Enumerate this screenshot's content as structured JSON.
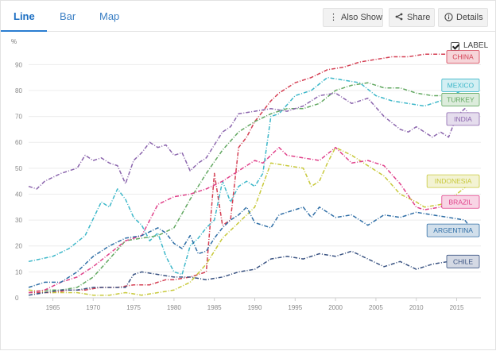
{
  "tabs": [
    "Line",
    "Bar",
    "Map"
  ],
  "toolbar": {
    "also_show": "Also Show",
    "share": "Share",
    "details": "Details",
    "label_toggle": "LABEL"
  },
  "icons": {
    "also_show": "ellipsis-vertical-icon",
    "share": "share-icon",
    "details": "info-icon",
    "label_toggle": "checkbox-checked-icon"
  },
  "chart_data": {
    "type": "line",
    "title": "",
    "xlabel": "",
    "ylabel": "%",
    "xlim": [
      1962,
      2018
    ],
    "ylim": [
      0,
      95
    ],
    "x_ticks": [
      1965,
      1970,
      1975,
      1980,
      1985,
      1990,
      1995,
      2000,
      2005,
      2010,
      2015
    ],
    "y_ticks": [
      0,
      10,
      20,
      30,
      40,
      50,
      60,
      70,
      80,
      90
    ],
    "grid": true,
    "legend": "inline labels at line ends",
    "series": [
      {
        "name": "CHINA",
        "color": "#d43f53",
        "x": [
          1962,
          1965,
          1967,
          1969,
          1971,
          1973,
          1975,
          1977,
          1978,
          1979,
          1980,
          1982,
          1984,
          1985,
          1986,
          1987,
          1988,
          1989,
          1990,
          1991,
          1992,
          1993,
          1995,
          1997,
          1999,
          2001,
          2003,
          2005,
          2007,
          2009,
          2011,
          2013,
          2015,
          2017
        ],
        "y": [
          2,
          2,
          3,
          3,
          4,
          4,
          5,
          5,
          6,
          7,
          7,
          8,
          10,
          48,
          28,
          30,
          58,
          62,
          68,
          72,
          76,
          79,
          83,
          85,
          88,
          89,
          91,
          92,
          93,
          93,
          94,
          94,
          94,
          93
        ]
      },
      {
        "name": "MEXICO",
        "color": "#3cb7c9",
        "x": [
          1962,
          1965,
          1967,
          1969,
          1971,
          1972,
          1973,
          1974,
          1975,
          1976,
          1977,
          1978,
          1979,
          1980,
          1981,
          1982,
          1983,
          1984,
          1985,
          1986,
          1987,
          1988,
          1989,
          1990,
          1991,
          1992,
          1993,
          1995,
          1997,
          1999,
          2001,
          2003,
          2005,
          2007,
          2009,
          2011,
          2013,
          2015,
          2017
        ],
        "y": [
          14,
          16,
          19,
          24,
          37,
          35,
          42,
          38,
          31,
          28,
          22,
          25,
          16,
          10,
          9,
          20,
          23,
          27,
          30,
          45,
          37,
          43,
          45,
          43,
          48,
          70,
          71,
          78,
          80,
          85,
          84,
          83,
          78,
          76,
          75,
          74,
          76,
          79,
          82
        ]
      },
      {
        "name": "TURKEY",
        "color": "#62a861",
        "x": [
          1962,
          1964,
          1966,
          1968,
          1970,
          1972,
          1974,
          1976,
          1978,
          1980,
          1982,
          1984,
          1986,
          1988,
          1990,
          1992,
          1994,
          1996,
          1998,
          2000,
          2002,
          2004,
          2006,
          2008,
          2010,
          2012,
          2014,
          2016,
          2017
        ],
        "y": [
          2,
          3,
          3,
          4,
          8,
          15,
          22,
          23,
          24,
          27,
          38,
          48,
          57,
          64,
          68,
          71,
          73,
          73,
          75,
          80,
          82,
          83,
          81,
          81,
          79,
          78,
          78,
          78,
          78
        ]
      },
      {
        "name": "INDIA",
        "color": "#8b65ad",
        "x": [
          1962,
          1963,
          1964,
          1966,
          1968,
          1969,
          1970,
          1971,
          1972,
          1973,
          1974,
          1975,
          1976,
          1977,
          1978,
          1979,
          1980,
          1981,
          1982,
          1983,
          1984,
          1985,
          1986,
          1987,
          1988,
          1990,
          1992,
          1994,
          1996,
          1998,
          2000,
          2002,
          2004,
          2006,
          2008,
          2009,
          2010,
          2011,
          2012,
          2013,
          2014,
          2015,
          2016,
          2017
        ],
        "y": [
          43,
          42,
          45,
          48,
          50,
          55,
          53,
          54,
          52,
          51,
          44,
          53,
          56,
          60,
          58,
          59,
          55,
          56,
          49,
          52,
          54,
          59,
          64,
          66,
          71,
          72,
          73,
          72,
          74,
          78,
          79,
          75,
          77,
          70,
          65,
          64,
          66,
          64,
          62,
          64,
          62,
          70,
          73,
          69
        ]
      },
      {
        "name": "INDONESIA",
        "color": "#c8c93b",
        "x": [
          1962,
          1965,
          1968,
          1970,
          1972,
          1974,
          1976,
          1978,
          1980,
          1982,
          1984,
          1986,
          1988,
          1990,
          1992,
          1994,
          1996,
          1997,
          1998,
          1999,
          2000,
          2002,
          2004,
          2006,
          2008,
          2010,
          2011,
          2013,
          2015,
          2017
        ],
        "y": [
          3,
          2,
          2,
          1,
          1,
          2,
          1,
          2,
          3,
          6,
          13,
          23,
          29,
          35,
          52,
          51,
          50,
          43,
          45,
          52,
          58,
          55,
          51,
          47,
          40,
          37,
          35,
          36,
          40,
          45
        ]
      },
      {
        "name": "BRAZIL",
        "color": "#e0418a",
        "x": [
          1962,
          1964,
          1966,
          1968,
          1970,
          1972,
          1974,
          1976,
          1978,
          1980,
          1982,
          1984,
          1986,
          1988,
          1990,
          1991,
          1992,
          1993,
          1994,
          1996,
          1998,
          2000,
          2002,
          2004,
          2006,
          2008,
          2010,
          2011,
          2013,
          2015,
          2017
        ],
        "y": [
          2,
          3,
          6,
          8,
          12,
          17,
          22,
          24,
          36,
          39,
          40,
          42,
          45,
          49,
          53,
          52,
          55,
          58,
          55,
          54,
          53,
          58,
          52,
          53,
          51,
          44,
          35,
          34,
          35,
          39,
          37
        ]
      },
      {
        "name": "ARGENTINA",
        "color": "#2f6ea6",
        "x": [
          1962,
          1964,
          1966,
          1968,
          1969,
          1970,
          1972,
          1974,
          1976,
          1978,
          1979,
          1980,
          1981,
          1982,
          1983,
          1984,
          1985,
          1986,
          1987,
          1988,
          1989,
          1990,
          1991,
          1992,
          1993,
          1994,
          1996,
          1997,
          1998,
          2000,
          2002,
          2004,
          2006,
          2008,
          2010,
          2012,
          2014,
          2016,
          2017
        ],
        "y": [
          4,
          6,
          6,
          10,
          13,
          16,
          20,
          23,
          24,
          27,
          25,
          21,
          19,
          24,
          17,
          18,
          23,
          27,
          30,
          32,
          35,
          29,
          28,
          27,
          32,
          33,
          35,
          31,
          35,
          31,
          32,
          28,
          32,
          31,
          33,
          32,
          31,
          30,
          26
        ]
      },
      {
        "name": "CHILE",
        "color": "#3a5382",
        "x": [
          1962,
          1964,
          1966,
          1968,
          1970,
          1972,
          1974,
          1975,
          1976,
          1978,
          1980,
          1982,
          1984,
          1986,
          1988,
          1990,
          1992,
          1994,
          1996,
          1998,
          2000,
          2002,
          2004,
          2006,
          2008,
          2010,
          2012,
          2014,
          2016,
          2017
        ],
        "y": [
          1,
          2,
          3,
          3,
          4,
          4,
          4,
          9,
          10,
          9,
          8,
          8,
          7,
          8,
          10,
          11,
          15,
          16,
          15,
          17,
          16,
          18,
          15,
          12,
          14,
          11,
          13,
          14,
          15,
          14
        ]
      }
    ]
  }
}
